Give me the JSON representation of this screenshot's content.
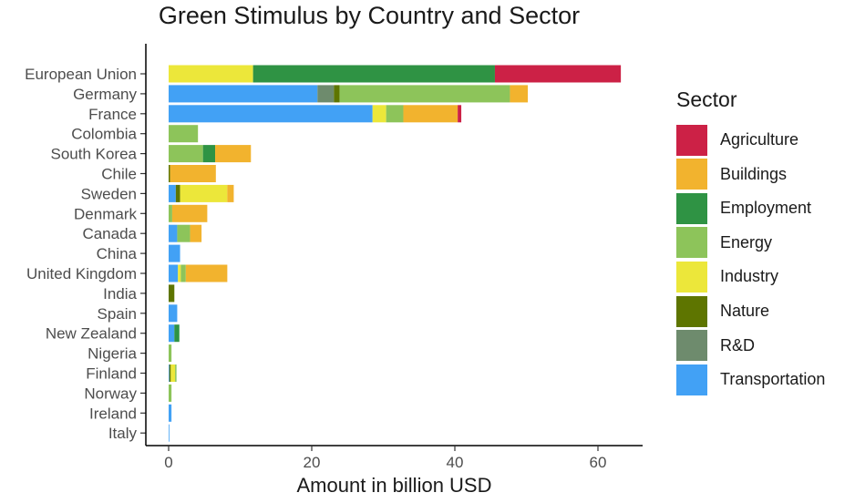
{
  "chart_data": {
    "type": "bar",
    "orientation": "horizontal",
    "stacked": true,
    "title": "Green Stimulus by Country and Sector",
    "xlabel": "Amount in billion USD",
    "ylabel": "",
    "xlim": [
      -3,
      66
    ],
    "xticks": [
      0,
      20,
      40,
      60
    ],
    "legend_title": "Sector",
    "legend_position": "right",
    "grid": false,
    "categories": [
      "European Union",
      "Germany",
      "France",
      "Colombia",
      "South Korea",
      "Chile",
      "Sweden",
      "Denmark",
      "Canada",
      "China",
      "United Kingdom",
      "India",
      "Spain",
      "New Zealand",
      "Nigeria",
      "Finland",
      "Norway",
      "Ireland",
      "Italy"
    ],
    "series": [
      {
        "name": "Transportation",
        "color": "#42A1F5",
        "values": [
          0,
          20.8,
          28.5,
          0,
          0,
          0,
          1.0,
          0,
          1.2,
          1.6,
          1.3,
          0,
          1.2,
          0.8,
          0,
          0.1,
          0,
          0.4,
          0.1
        ]
      },
      {
        "name": "R&D",
        "color": "#6E8B6D",
        "values": [
          0,
          2.3,
          0,
          0,
          0,
          0,
          0,
          0,
          0,
          0,
          0,
          0,
          0,
          0,
          0,
          0,
          0,
          0,
          0
        ]
      },
      {
        "name": "Nature",
        "color": "#5E7500",
        "values": [
          0,
          0.8,
          0,
          0,
          0,
          0.2,
          0.6,
          0,
          0,
          0,
          0,
          0.8,
          0,
          0,
          0,
          0.2,
          0,
          0,
          0
        ]
      },
      {
        "name": "Industry",
        "color": "#ECE73A",
        "values": [
          11.8,
          0,
          1.9,
          0,
          0,
          0,
          6.6,
          0,
          0,
          0,
          0.4,
          0,
          0,
          0,
          0,
          0.6,
          0,
          0,
          0
        ]
      },
      {
        "name": "Energy",
        "color": "#8DC45A",
        "values": [
          0,
          23.8,
          2.4,
          4.1,
          4.8,
          0,
          0,
          0.5,
          1.8,
          0,
          0.7,
          0,
          0,
          0,
          0.4,
          0.2,
          0.4,
          0,
          0
        ]
      },
      {
        "name": "Employment",
        "color": "#2F9344",
        "values": [
          33.8,
          0,
          0,
          0,
          1.7,
          0,
          0,
          0,
          0,
          0,
          0,
          0,
          0,
          0.7,
          0,
          0,
          0,
          0,
          0
        ]
      },
      {
        "name": "Buildings",
        "color": "#F2B32E",
        "values": [
          0,
          2.5,
          7.6,
          0,
          5.0,
          6.4,
          0.9,
          4.9,
          1.6,
          0,
          5.8,
          0,
          0,
          0,
          0,
          0,
          0,
          0,
          0
        ]
      },
      {
        "name": "Agriculture",
        "color": "#CC2146",
        "values": [
          17.6,
          0,
          0.5,
          0,
          0,
          0,
          0,
          0,
          0,
          0,
          0,
          0,
          0,
          0,
          0,
          0,
          0,
          0,
          0
        ]
      }
    ],
    "legend_order": [
      "Agriculture",
      "Buildings",
      "Employment",
      "Energy",
      "Industry",
      "Nature",
      "R&D",
      "Transportation"
    ]
  }
}
